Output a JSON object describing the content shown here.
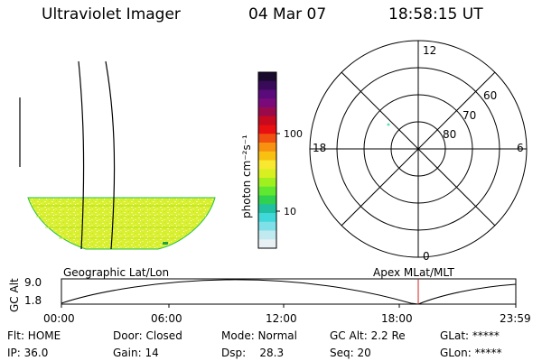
{
  "header": {
    "instrument": "Ultraviolet Imager",
    "date": "04 Mar 07",
    "time": "18:58:15 UT"
  },
  "colorbar": {
    "unit_label": "photon cm⁻²s⁻¹",
    "tick_labels": [
      "100",
      "10"
    ],
    "colors": [
      "#1a0a2e",
      "#3a0a5a",
      "#5a0a7a",
      "#7a0a7a",
      "#9a0a4a",
      "#c80a1e",
      "#e81010",
      "#f05010",
      "#f89010",
      "#f8c010",
      "#f8e830",
      "#d8f020",
      "#a0f020",
      "#60e830",
      "#30d050",
      "#20c0a0",
      "#40d8d8",
      "#80e0e8",
      "#c0eaf0",
      "#e8f0f4"
    ]
  },
  "polar": {
    "mlt_labels": {
      "top": "12",
      "left": "18",
      "right": "6",
      "bottom": "0"
    },
    "lat_labels": [
      "60",
      "70",
      "80"
    ]
  },
  "timeline": {
    "y_axis_title": "GC Alt",
    "y_ticks": [
      "9.0",
      "1.8"
    ],
    "left_title": "Geographic Lat/Lon",
    "right_title": "Apex MLat/MLT",
    "x_ticks": [
      "00:00",
      "06:00",
      "12:00",
      "18:00",
      "23:59"
    ],
    "current_time_color": "#d02020"
  },
  "status": {
    "flt": "Flt: HOME",
    "ip": "IP: 36.0",
    "door": "Door: Closed",
    "gain": "Gain: 14",
    "mode": "Mode: Normal",
    "dsp": "Dsp:    28.3",
    "gc_alt": "GC Alt: 2.2 Re",
    "seq": "Seq: 20",
    "glat": "GLat: *****",
    "glon": "GLon: *****"
  }
}
